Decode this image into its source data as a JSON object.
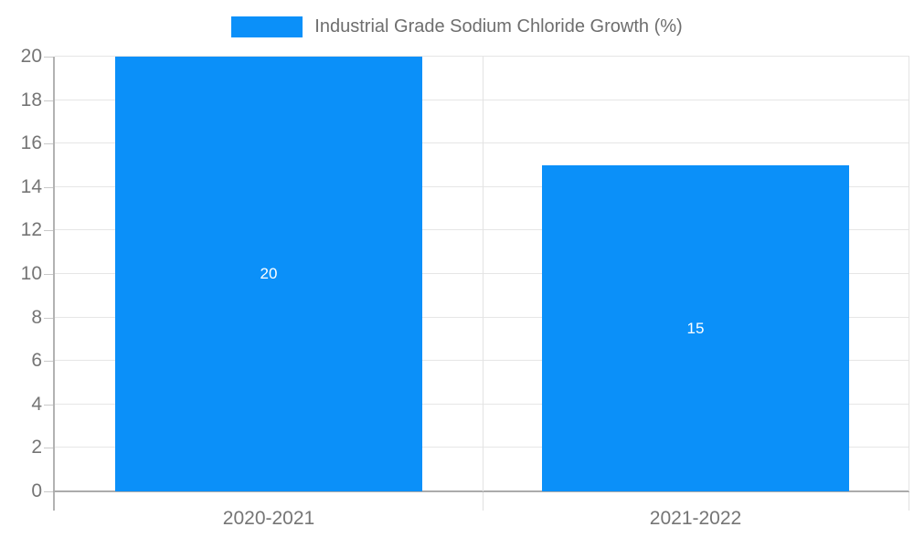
{
  "chart_data": {
    "type": "bar",
    "title": "Industrial Grade Sodium Chloride Growth (%)",
    "categories": [
      "2020-2021",
      "2021-2022"
    ],
    "series": [
      {
        "name": "Industrial Grade Sodium Chloride Growth (%)",
        "values": [
          20,
          15
        ]
      }
    ],
    "data_labels": [
      "20",
      "15"
    ],
    "xlabel": "",
    "ylabel": "",
    "ylim": [
      0,
      20
    ],
    "yticks": [
      0,
      2,
      4,
      6,
      8,
      10,
      12,
      14,
      16,
      18,
      20
    ],
    "grid": true,
    "legend_position": "top",
    "colors": {
      "bar": "#0b90f9",
      "gridline": "#e6e6e6",
      "axis_line": "#b2b2b2",
      "axis_text": "#757575",
      "legend_text": "#6e6e6e",
      "data_label_text": "#ffffff",
      "background": "#ffffff"
    }
  },
  "legend": {
    "label": "Industrial Grade Sodium Chloride Growth (%)"
  }
}
